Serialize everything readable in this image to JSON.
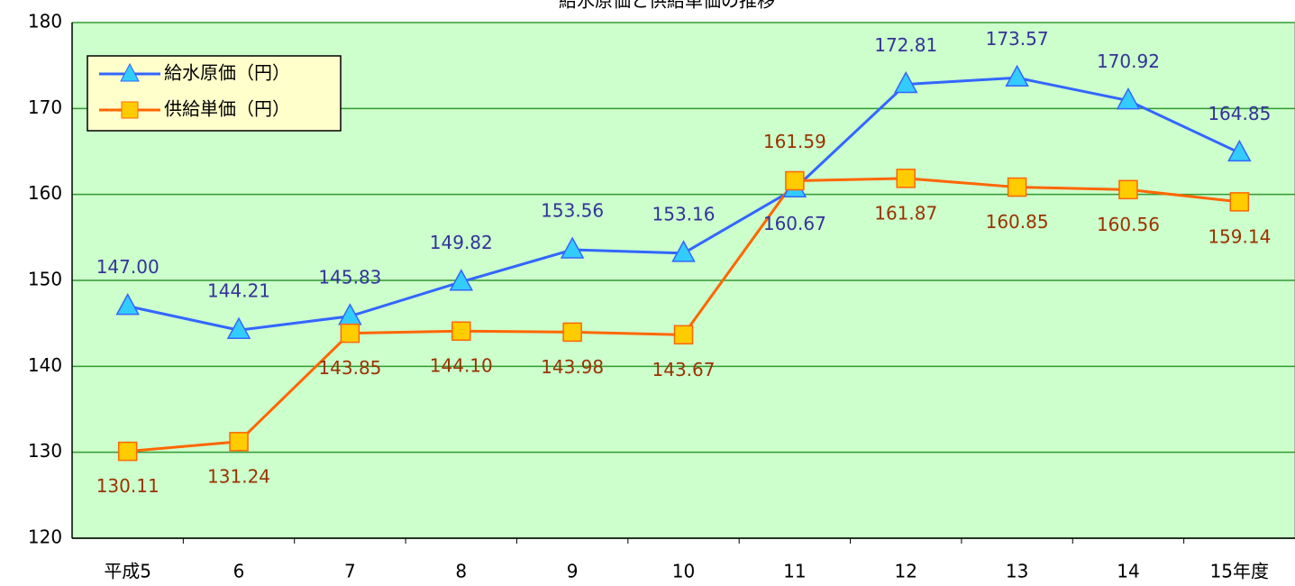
{
  "chart_data": {
    "type": "line",
    "title": "給水原価と供給単価の推移",
    "categories": [
      "平成5",
      "6",
      "7",
      "8",
      "9",
      "10",
      "11",
      "12",
      "13",
      "14",
      "15年度"
    ],
    "series": [
      {
        "name": "給水原価（円）",
        "color": "#3366ff",
        "marker_color": "#33ccff",
        "marker": "triangle",
        "values": [
          147.0,
          144.21,
          145.83,
          149.82,
          153.56,
          153.16,
          160.67,
          172.81,
          173.57,
          170.92,
          164.85
        ],
        "value_labels": [
          "147.00",
          "144.21",
          "145.83",
          "149.82",
          "153.56",
          "153.16",
          "160.67",
          "172.81",
          "173.57",
          "170.92",
          "164.85"
        ],
        "label_color": "#333399"
      },
      {
        "name": "供給単価（円）",
        "color": "#ff6600",
        "marker_color": "#ffcc00",
        "marker": "square",
        "values": [
          130.11,
          131.24,
          143.85,
          144.1,
          143.98,
          143.67,
          161.59,
          161.87,
          160.85,
          160.56,
          159.14
        ],
        "value_labels": [
          "130.11",
          "131.24",
          "143.85",
          "144.10",
          "143.98",
          "143.67",
          "161.59",
          "161.87",
          "160.85",
          "160.56",
          "159.14"
        ],
        "label_color": "#993300"
      }
    ],
    "ylim": [
      120,
      180
    ],
    "yticks": [
      120,
      130,
      140,
      150,
      160,
      170,
      180
    ],
    "grid": true,
    "legend": "upper left",
    "background": "#ccffcc"
  }
}
